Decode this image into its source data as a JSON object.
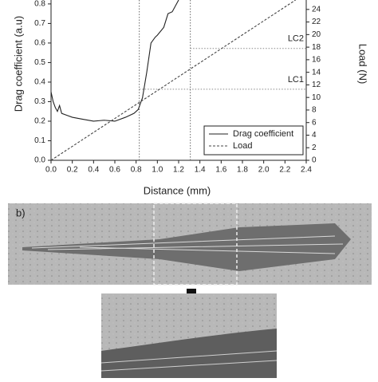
{
  "chart_data": {
    "type": "line",
    "x_label": "Distance (mm)",
    "y_label": "Drag coefficient (a.u)",
    "y2_label": "Load (N)",
    "xlim": [
      0,
      2.4
    ],
    "ylim": [
      0,
      0.82
    ],
    "y2lim": [
      0,
      25.5
    ],
    "xticks": [
      {
        "value": 0,
        "label": "0.0"
      },
      0.2,
      0.4,
      0.6,
      0.8,
      {
        "value": 1,
        "label": "1.0"
      },
      1.2,
      1.4,
      1.6,
      1.8,
      {
        "value": 2,
        "label": "2.0"
      },
      2.2,
      2.4
    ],
    "yticks": [
      {
        "value": 0,
        "label": "0.0"
      },
      0.1,
      0.2,
      0.3,
      0.4,
      0.5,
      0.6,
      0.7,
      0.8
    ],
    "y2ticks": [
      0,
      2,
      4,
      6,
      8,
      10,
      12,
      14,
      16,
      18,
      20,
      22,
      24
    ],
    "series": [
      {
        "name": "Drag coefficient",
        "color": "#222222",
        "dash": false,
        "x": [
          0,
          0.02,
          0.04,
          0.06,
          0.08,
          0.1,
          0.15,
          0.2,
          0.3,
          0.4,
          0.5,
          0.6,
          0.7,
          0.78,
          0.82,
          0.86,
          0.9,
          0.94,
          0.98,
          1.0,
          1.06,
          1.1,
          1.14,
          1.2
        ],
        "values": [
          0.35,
          0.3,
          0.27,
          0.25,
          0.28,
          0.24,
          0.23,
          0.22,
          0.21,
          0.2,
          0.205,
          0.2,
          0.22,
          0.24,
          0.26,
          0.32,
          0.45,
          0.6,
          0.63,
          0.64,
          0.68,
          0.75,
          0.76,
          0.82
        ]
      },
      {
        "name": "Load",
        "color": "#444444",
        "dash": true,
        "axis": "y2",
        "x": [
          0,
          2.3
        ],
        "values": [
          0,
          25.5
        ]
      }
    ],
    "annotations": [
      {
        "label": "LC1",
        "x": 0.83,
        "load": 11.3
      },
      {
        "label": "LC2",
        "x": 1.31,
        "load": 17.8
      }
    ],
    "legend": "lower right"
  },
  "panel_label": "b)"
}
